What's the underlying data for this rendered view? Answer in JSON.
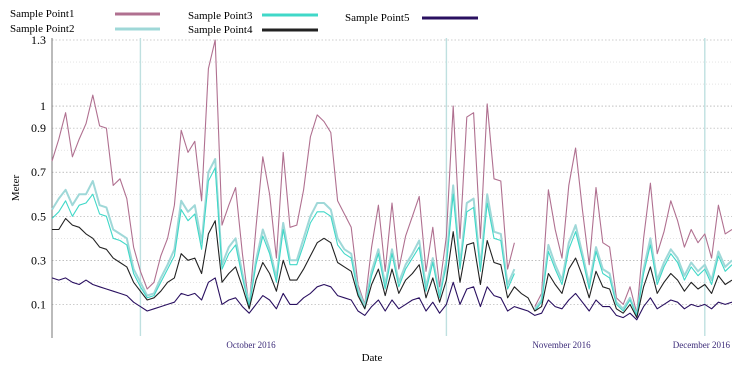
{
  "chart_data": {
    "type": "line",
    "title": "",
    "xlabel": "Date",
    "ylabel": "Meter",
    "x_tick_labels": [
      "October 2016",
      "November 2016",
      "December 2016"
    ],
    "y_tick_labels": [
      "0.1",
      "0.3",
      "0.5",
      "0.7",
      "0.9",
      "1",
      "1.3"
    ],
    "y_tick_values": [
      0.1,
      0.3,
      0.5,
      0.7,
      0.9,
      1.0,
      1.3
    ],
    "ylim": [
      0.02,
      1.3
    ],
    "grid": true,
    "legend_placement": "top",
    "x_index_range": [
      0,
      100
    ],
    "month_boundaries": [
      13,
      58,
      96
    ],
    "series": [
      {
        "name": "Sample Point1",
        "color": "#b07090",
        "values": [
          0.75,
          0.85,
          0.97,
          0.77,
          0.85,
          0.92,
          1.05,
          0.91,
          0.9,
          0.64,
          0.67,
          0.58,
          0.36,
          0.25,
          0.17,
          0.2,
          0.32,
          0.4,
          0.55,
          0.89,
          0.79,
          0.84,
          0.57,
          1.17,
          1.3,
          0.46,
          0.55,
          0.63,
          0.33,
          0.09,
          0.45,
          0.77,
          0.6,
          0.31,
          0.79,
          0.45,
          0.46,
          0.62,
          0.86,
          0.96,
          0.93,
          0.88,
          0.57,
          0.51,
          0.45,
          0.19,
          0.1,
          0.36,
          0.55,
          0.25,
          0.56,
          0.26,
          0.41,
          0.5,
          0.59,
          0.25,
          0.45,
          0.18,
          0.41,
          1.0,
          0.4,
          0.95,
          0.97,
          0.4,
          1.01,
          0.67,
          0.66,
          0.26,
          0.38,
          0.29,
          0.25,
          0.09,
          0.15,
          0.62,
          0.44,
          0.31,
          0.64,
          0.81,
          0.53,
          0.28,
          0.63,
          0.38,
          0.36,
          0.13,
          0.1,
          0.18,
          0.06,
          0.4,
          0.65,
          0.33,
          0.43,
          0.57,
          0.48,
          0.36,
          0.44,
          0.38,
          0.42,
          0.31,
          0.55,
          0.42,
          0.44
        ],
        "gaps": [
          [
            68,
            71
          ]
        ]
      },
      {
        "name": "Sample Point2",
        "color": "#9fd8d8",
        "values": [
          0.53,
          0.58,
          0.62,
          0.55,
          0.6,
          0.6,
          0.66,
          0.55,
          0.54,
          0.44,
          0.42,
          0.4,
          0.26,
          0.2,
          0.14,
          0.15,
          0.22,
          0.28,
          0.35,
          0.57,
          0.52,
          0.55,
          0.38,
          0.7,
          0.76,
          0.28,
          0.36,
          0.4,
          0.24,
          0.1,
          0.3,
          0.44,
          0.35,
          0.22,
          0.47,
          0.3,
          0.3,
          0.4,
          0.5,
          0.56,
          0.56,
          0.53,
          0.4,
          0.35,
          0.33,
          0.17,
          0.09,
          0.25,
          0.35,
          0.19,
          0.35,
          0.2,
          0.28,
          0.33,
          0.39,
          0.18,
          0.31,
          0.14,
          0.3,
          0.64,
          0.28,
          0.56,
          0.58,
          0.27,
          0.6,
          0.43,
          0.42,
          0.19,
          0.26,
          0.22,
          0.18,
          0.08,
          0.12,
          0.37,
          0.28,
          0.21,
          0.38,
          0.46,
          0.33,
          0.19,
          0.36,
          0.26,
          0.24,
          0.11,
          0.08,
          0.13,
          0.05,
          0.26,
          0.4,
          0.21,
          0.29,
          0.35,
          0.31,
          0.23,
          0.29,
          0.25,
          0.28,
          0.21,
          0.34,
          0.27,
          0.3
        ],
        "gaps": [
          [
            68,
            71
          ]
        ]
      },
      {
        "name": "Sample Point3",
        "color": "#40d8c8",
        "values": [
          0.49,
          0.52,
          0.57,
          0.5,
          0.55,
          0.56,
          0.6,
          0.51,
          0.5,
          0.4,
          0.39,
          0.37,
          0.24,
          0.18,
          0.13,
          0.14,
          0.2,
          0.26,
          0.32,
          0.53,
          0.48,
          0.51,
          0.35,
          0.66,
          0.72,
          0.26,
          0.33,
          0.37,
          0.22,
          0.09,
          0.28,
          0.41,
          0.33,
          0.2,
          0.44,
          0.28,
          0.28,
          0.37,
          0.47,
          0.52,
          0.52,
          0.5,
          0.37,
          0.33,
          0.31,
          0.15,
          0.08,
          0.23,
          0.33,
          0.17,
          0.33,
          0.18,
          0.26,
          0.31,
          0.36,
          0.16,
          0.29,
          0.13,
          0.28,
          0.6,
          0.26,
          0.52,
          0.54,
          0.25,
          0.56,
          0.4,
          0.39,
          0.17,
          0.24,
          0.2,
          0.16,
          0.07,
          0.11,
          0.34,
          0.26,
          0.19,
          0.35,
          0.43,
          0.31,
          0.17,
          0.34,
          0.24,
          0.22,
          0.1,
          0.07,
          0.12,
          0.05,
          0.24,
          0.37,
          0.19,
          0.27,
          0.33,
          0.29,
          0.21,
          0.27,
          0.23,
          0.26,
          0.19,
          0.32,
          0.25,
          0.28
        ],
        "gaps": [
          [
            68,
            71
          ]
        ]
      },
      {
        "name": "Sample Point4",
        "color": "#222222",
        "values": [
          0.44,
          0.44,
          0.49,
          0.46,
          0.45,
          0.42,
          0.4,
          0.36,
          0.35,
          0.31,
          0.29,
          0.27,
          0.2,
          0.16,
          0.12,
          0.13,
          0.16,
          0.2,
          0.22,
          0.33,
          0.3,
          0.31,
          0.24,
          0.42,
          0.48,
          0.2,
          0.24,
          0.27,
          0.18,
          0.08,
          0.21,
          0.29,
          0.24,
          0.16,
          0.3,
          0.21,
          0.21,
          0.26,
          0.32,
          0.38,
          0.4,
          0.38,
          0.29,
          0.27,
          0.25,
          0.14,
          0.08,
          0.19,
          0.26,
          0.14,
          0.26,
          0.15,
          0.21,
          0.24,
          0.28,
          0.13,
          0.22,
          0.11,
          0.21,
          0.43,
          0.2,
          0.37,
          0.38,
          0.19,
          0.39,
          0.29,
          0.28,
          0.13,
          0.18,
          0.15,
          0.13,
          0.07,
          0.09,
          0.24,
          0.19,
          0.15,
          0.26,
          0.31,
          0.23,
          0.13,
          0.25,
          0.18,
          0.17,
          0.08,
          0.06,
          0.1,
          0.04,
          0.18,
          0.27,
          0.15,
          0.2,
          0.24,
          0.21,
          0.16,
          0.2,
          0.17,
          0.19,
          0.15,
          0.23,
          0.19,
          0.21
        ],
        "gaps": []
      },
      {
        "name": "Sample Point5",
        "color": "#2a1060",
        "values": [
          0.22,
          0.21,
          0.22,
          0.2,
          0.19,
          0.21,
          0.19,
          0.18,
          0.17,
          0.16,
          0.15,
          0.14,
          0.11,
          0.09,
          0.07,
          0.08,
          0.09,
          0.1,
          0.11,
          0.15,
          0.14,
          0.15,
          0.12,
          0.2,
          0.22,
          0.1,
          0.12,
          0.13,
          0.09,
          0.06,
          0.1,
          0.14,
          0.12,
          0.08,
          0.15,
          0.1,
          0.1,
          0.13,
          0.15,
          0.18,
          0.19,
          0.18,
          0.14,
          0.13,
          0.12,
          0.07,
          0.05,
          0.09,
          0.12,
          0.07,
          0.12,
          0.08,
          0.1,
          0.12,
          0.13,
          0.07,
          0.11,
          0.06,
          0.1,
          0.2,
          0.1,
          0.17,
          0.18,
          0.09,
          0.18,
          0.14,
          0.13,
          0.07,
          0.09,
          0.08,
          0.07,
          0.05,
          0.06,
          0.12,
          0.09,
          0.08,
          0.12,
          0.15,
          0.11,
          0.07,
          0.12,
          0.09,
          0.09,
          0.05,
          0.04,
          0.06,
          0.03,
          0.09,
          0.13,
          0.08,
          0.1,
          0.12,
          0.11,
          0.08,
          0.1,
          0.09,
          0.1,
          0.08,
          0.11,
          0.1,
          0.11
        ],
        "gaps": []
      }
    ]
  }
}
